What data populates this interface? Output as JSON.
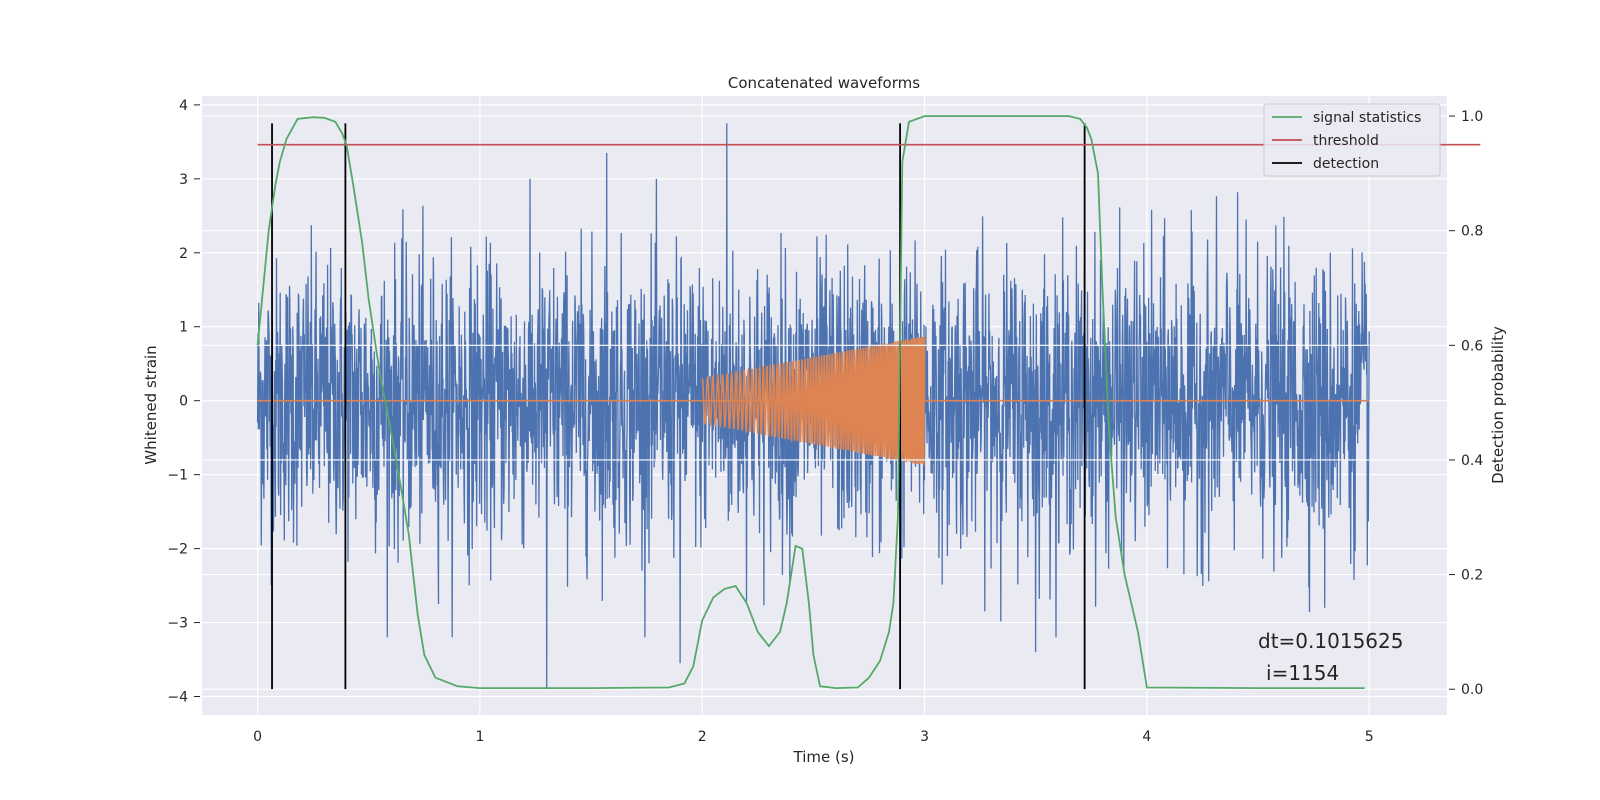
{
  "chart_data": {
    "type": "line",
    "title": "Concatenated waveforms",
    "xlabel": "Time (s)",
    "ylabel": "Whitened strain",
    "y2label": "Detection probability",
    "xlim": [
      -0.25,
      5.35
    ],
    "ylim": [
      -4.25,
      4.12
    ],
    "y2lim": [
      -0.045,
      1.035
    ],
    "xticks": [
      0,
      1,
      2,
      3,
      4,
      5
    ],
    "yticks": [
      -4,
      -3,
      -2,
      -1,
      0,
      1,
      2,
      3,
      4
    ],
    "y2ticks": [
      0.0,
      0.2,
      0.4,
      0.6,
      0.8,
      1.0
    ],
    "y2tick_labels": [
      "0.0",
      "0.2",
      "0.4",
      "0.6",
      "0.8",
      "1.0"
    ],
    "grid": true,
    "legend_position": "top-right",
    "colors": {
      "background": "#eaeaf2",
      "noise": "#4c72b0",
      "injection": "#dd8452",
      "signal": "#55a868",
      "threshold": "#c44e52",
      "detection": "#000000"
    },
    "series": [
      {
        "kind": "noise",
        "x_range": [
          0,
          5
        ],
        "y_range": [
          -3.9,
          3.75
        ],
        "typical_range": [
          -2.4,
          2.4
        ],
        "peaks": [
          {
            "x": 2.11,
            "y": 3.75
          },
          {
            "x": 1.57,
            "y": 3.35
          },
          {
            "x": 1.3,
            "y": -3.9
          },
          {
            "x": 1.9,
            "y": -3.55
          },
          {
            "x": 3.5,
            "y": -3.4
          },
          {
            "x": 4.8,
            "y": -2.8
          }
        ]
      },
      {
        "kind": "injection",
        "x_range": [
          2.0,
          3.0
        ],
        "amplitude_start": 0.3,
        "amplitude_end": 0.88
      },
      {
        "name": "signal statistics",
        "axis": "right",
        "x": [
          0,
          0.05,
          0.08,
          0.1,
          0.13,
          0.18,
          0.25,
          0.3,
          0.35,
          0.38,
          0.4,
          0.43,
          0.47,
          0.5,
          0.55,
          0.6,
          0.65,
          0.68,
          0.7,
          0.72,
          0.75,
          0.8,
          0.9,
          1.0,
          1.5,
          1.85,
          1.92,
          1.96,
          2.0,
          2.05,
          2.1,
          2.15,
          2.2,
          2.25,
          2.3,
          2.35,
          2.38,
          2.42,
          2.45,
          2.48,
          2.5,
          2.53,
          2.6,
          2.7,
          2.75,
          2.8,
          2.84,
          2.86,
          2.88,
          2.9,
          2.93,
          3.0,
          3.5,
          3.65,
          3.7,
          3.73,
          3.75,
          3.78,
          3.8,
          3.83,
          3.86,
          3.9,
          3.93,
          3.96,
          4.0,
          4.5,
          4.98
        ],
        "y": [
          0.6,
          0.8,
          0.88,
          0.92,
          0.96,
          0.995,
          0.998,
          0.997,
          0.99,
          0.97,
          0.95,
          0.88,
          0.78,
          0.68,
          0.55,
          0.45,
          0.34,
          0.27,
          0.2,
          0.13,
          0.06,
          0.02,
          0.005,
          0.002,
          0.002,
          0.003,
          0.01,
          0.04,
          0.12,
          0.16,
          0.175,
          0.18,
          0.15,
          0.1,
          0.075,
          0.1,
          0.15,
          0.25,
          0.245,
          0.15,
          0.06,
          0.005,
          0.002,
          0.003,
          0.02,
          0.05,
          0.1,
          0.15,
          0.3,
          0.92,
          0.99,
          1.0,
          1.0,
          1.0,
          0.995,
          0.98,
          0.96,
          0.9,
          0.7,
          0.45,
          0.3,
          0.2,
          0.15,
          0.1,
          0.003,
          0.002,
          0.002
        ]
      },
      {
        "name": "threshold",
        "axis": "right",
        "x": [
          0,
          5.5
        ],
        "y": [
          0.95,
          0.95
        ]
      },
      {
        "name": "detection",
        "x": [
          0.065,
          0.395,
          2.89,
          3.72
        ],
        "y_range": [
          -3.9,
          3.75
        ]
      }
    ],
    "legend": [
      "signal statistics",
      "threshold",
      "detection"
    ],
    "annotation": {
      "line1": "dt=0.1015625",
      "line2": "i=1154",
      "x": 4.5,
      "y": -3.25
    }
  }
}
